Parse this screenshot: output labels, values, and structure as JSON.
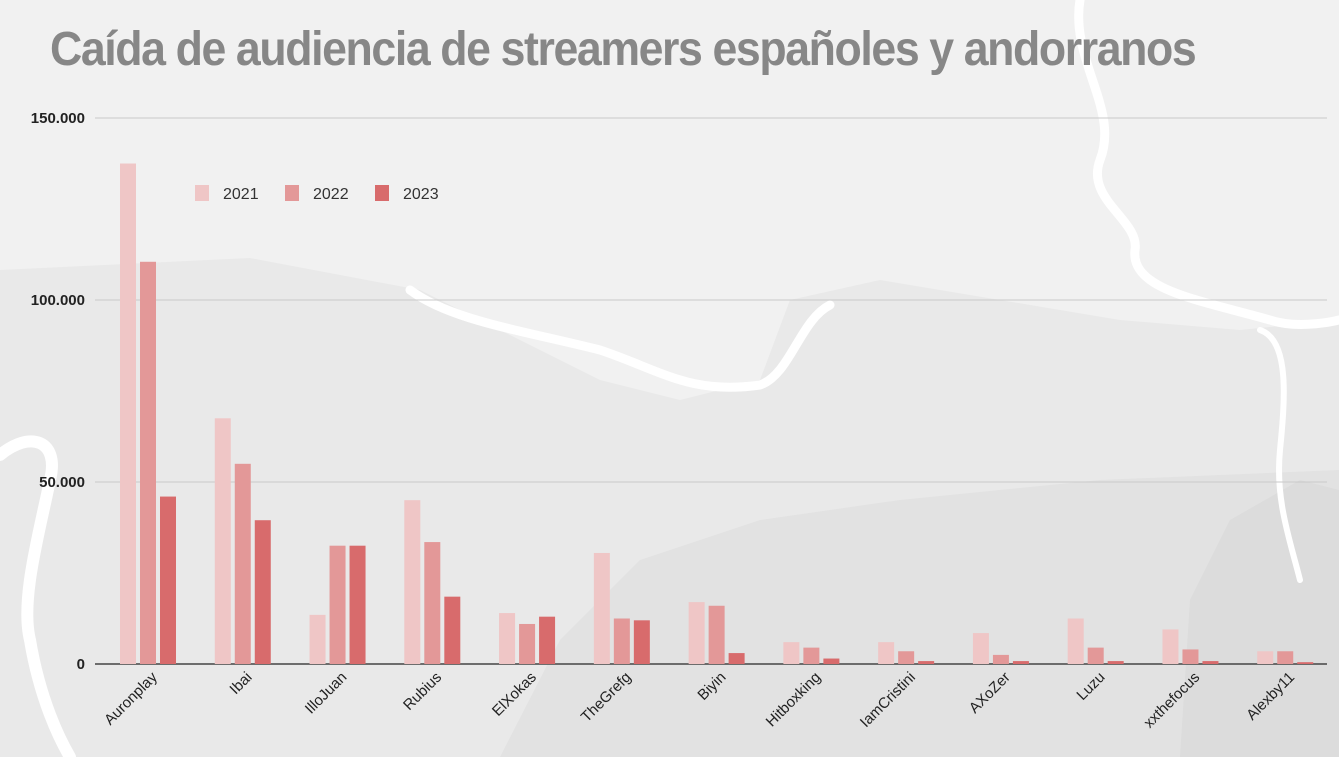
{
  "chart_data": {
    "type": "bar",
    "title": "Caída de audiencia de streamers españoles y andorranos",
    "categories": [
      "Auronplay",
      "Ibai",
      "IlloJuan",
      "Rubius",
      "ElXokas",
      "TheGrefg",
      "Biyin",
      "Hitboxking",
      "IamCristini",
      "AXoZer",
      "Luzu",
      "xxthefocus",
      "Alexby11"
    ],
    "series": [
      {
        "name": "2021",
        "color": "#efc6c6",
        "values": [
          137500,
          67500,
          13500,
          45000,
          14000,
          30500,
          17000,
          6000,
          6000,
          8500,
          12500,
          9500,
          3500
        ]
      },
      {
        "name": "2022",
        "color": "#e39898",
        "values": [
          110500,
          55000,
          32500,
          33500,
          11000,
          12500,
          16000,
          4500,
          3500,
          2500,
          4500,
          4000,
          3500
        ]
      },
      {
        "name": "2023",
        "color": "#d86b6c",
        "values": [
          46000,
          39500,
          32500,
          18500,
          13000,
          12000,
          3000,
          1500,
          800,
          800,
          800,
          800,
          500
        ]
      }
    ],
    "ylim": [
      0,
      150000
    ],
    "yticks": [
      0,
      50000,
      100000,
      150000
    ],
    "ytick_labels": [
      "0",
      "50.000",
      "100.000",
      "150.000"
    ],
    "grid": true,
    "legend_position": "top-left"
  }
}
